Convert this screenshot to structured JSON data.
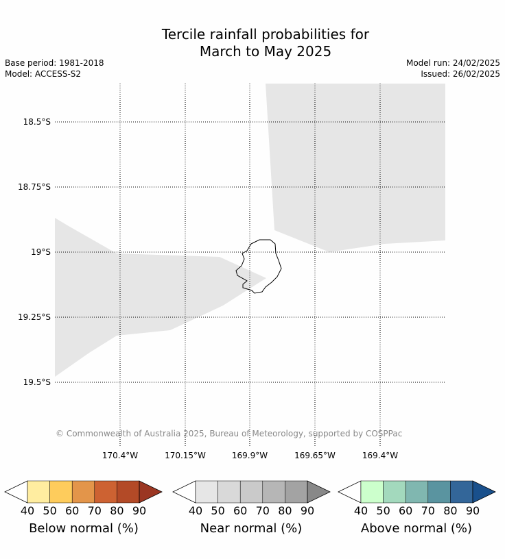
{
  "title_line1": "Tercile rainfall probabilities for",
  "title_line2": "March to May 2025",
  "base_period": "Base period: 1981-2018",
  "model": "Model: ACCESS-S2",
  "model_run": "Model run: 24/02/2025",
  "issued": "Issued: 26/02/2025",
  "lat_labels": [
    "18.5°S",
    "18.75°S",
    "19°S",
    "19.25°S",
    "19.5°S"
  ],
  "lon_labels": [
    "170.4°W",
    "170.15°W",
    "169.9°W",
    "169.65°W",
    "169.4°W"
  ],
  "copyright": "© Commonwealth of Australia 2025, Bureau of Meteorology, supported by COSPPac",
  "legends": [
    {
      "label": "Below normal (%)",
      "ticks": [
        "40",
        "50",
        "60",
        "70",
        "80",
        "90"
      ],
      "colors": [
        "#ffffff",
        "#ffeda0",
        "#fecc5c",
        "#e3954a",
        "#cd6232",
        "#b34a27",
        "#9b3622"
      ]
    },
    {
      "label": "Near normal (%)",
      "ticks": [
        "40",
        "50",
        "60",
        "70",
        "80",
        "90"
      ],
      "colors": [
        "#ffffff",
        "#e6e6e6",
        "#d9d9d9",
        "#cacaca",
        "#b6b6b6",
        "#a3a3a3",
        "#888888"
      ]
    },
    {
      "label": "Above normal (%)",
      "ticks": [
        "40",
        "50",
        "60",
        "70",
        "80",
        "90"
      ],
      "colors": [
        "#ffffff",
        "#ccffcc",
        "#a3d9bd",
        "#80b7b0",
        "#5a94a0",
        "#336699",
        "#19508c"
      ]
    }
  ]
}
